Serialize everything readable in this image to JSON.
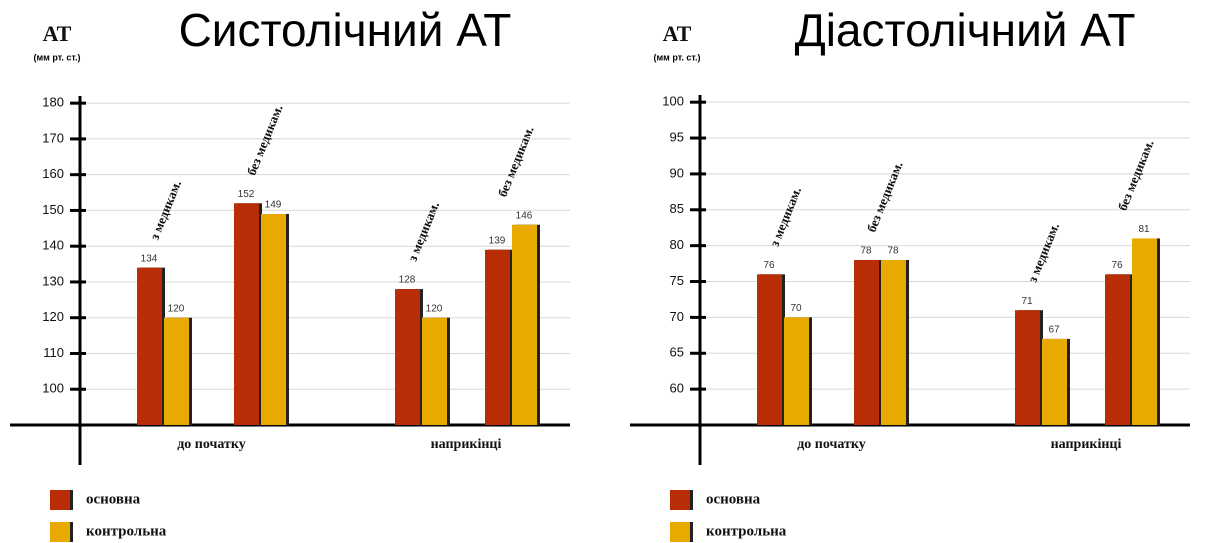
{
  "chart_data": [
    {
      "type": "bar",
      "title": "Систолічний АТ",
      "y_label": "АТ",
      "y_unit": "(мм рт. ст.)",
      "groups": [
        "до початку",
        "наприкінці"
      ],
      "categories": [
        "з медикам.",
        "без медикам.",
        "з медикам.",
        "без медикам."
      ],
      "series": [
        {
          "name": "основна",
          "color": "#b82c06",
          "values": [
            134,
            152,
            128,
            139
          ]
        },
        {
          "name": "контрольна",
          "color": "#e8a900",
          "values": [
            120,
            149,
            120,
            146
          ]
        }
      ],
      "ylim": [
        90,
        182
      ],
      "yticks": [
        100,
        110,
        120,
        130,
        140,
        150,
        160,
        170,
        180
      ],
      "grid": true
    },
    {
      "type": "bar",
      "title": "Діастолічний АТ",
      "y_label": "АТ",
      "y_unit": "(мм рт. ст.)",
      "groups": [
        "до початку",
        "наприкінці"
      ],
      "categories": [
        "з медикам.",
        "без медикам.",
        "з медикам.",
        "без медикам."
      ],
      "series": [
        {
          "name": "основна",
          "color": "#b82c06",
          "values": [
            76,
            78,
            71,
            76
          ]
        },
        {
          "name": "контрольна",
          "color": "#e8a900",
          "values": [
            70,
            78,
            67,
            81
          ]
        }
      ],
      "ylim": [
        55,
        101
      ],
      "yticks": [
        60,
        65,
        70,
        75,
        80,
        85,
        90,
        95,
        100
      ],
      "grid": true
    }
  ]
}
